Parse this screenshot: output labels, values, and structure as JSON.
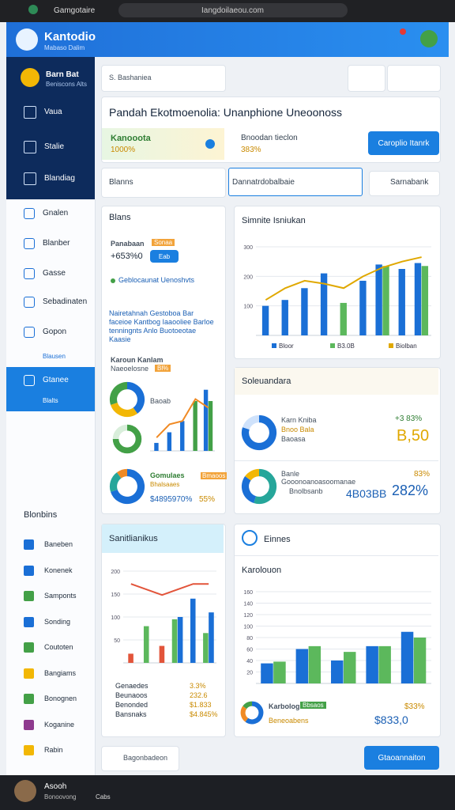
{
  "browser": {
    "tab": "Gamgotaire",
    "url": "Iangdoilaeou.com"
  },
  "header": {
    "brand": "Kantodio",
    "tagline": "Mabaso Dalim"
  },
  "sidebar": {
    "user_name": "Barn Bat",
    "user_role": "Beniscons Alts",
    "nav": [
      "Vaua",
      "Stalie",
      "Blandiag"
    ],
    "menu": [
      "Gnalen",
      "Blanber",
      "Gasse",
      "Sebadinaten",
      "Gopon",
      "Blausen",
      "Gtanee",
      "Blalts"
    ],
    "section": "Blonbins",
    "links": [
      "Baneben",
      "Konenek",
      "Samponts",
      "Sonding",
      "Coutoten",
      "Bangiams",
      "Bonognen",
      "Koganine",
      "Rabin"
    ]
  },
  "search": {
    "placeholder": "S. Bashaniea"
  },
  "title_panel": {
    "title": "Pandah Ekotmoenolia: Unanphione Uneoonoss",
    "kpi1_label": "Kanooota",
    "kpi1_value": "1000%",
    "kpi2_label": "Bnoodan tieclon",
    "kpi2_value": "383%",
    "button": "Caroplio Itanrk"
  },
  "filters": {
    "select": "Blanns",
    "input": "Dannatrdobalbaie",
    "button": "Sarnabank"
  },
  "left_card": {
    "title": "Blans",
    "label": "Panabaan",
    "badge": "Sonaa",
    "value": "+653%0",
    "button": "Eab",
    "legend": "Geblocaunat Uenoshvts",
    "note": "Nairetahnah Gestoboa Bar faceioe Kantbog Iaaooliee Barloe tenningnts Anlo Buotoeotae Kaasie",
    "chart_title": "Karoun Kanlam",
    "chart_sub": "Naeoelosne",
    "chart_badge": "Bl%",
    "donut_label": "Baoab",
    "footer_label": "Gomulaes",
    "footer_badge": "Bmaoos",
    "footer_sub": "Bhalsaaes",
    "footer_value": "$4895970%",
    "footer_pct": "55%"
  },
  "trend_card": {
    "title": "Simnite Isniukan"
  },
  "summary_card": {
    "title": "Soleuandara",
    "row1_name": "Karn Kniba",
    "row1_detail": "Bnoo Bala",
    "row1_detail2": "Baoasa",
    "row1_pct": "+3 83%",
    "row1_value": "B,50",
    "row2_name": "Banle",
    "row2_detail": "Gooonoanoasoomanae",
    "row2_detail2": "Bnolbsanb",
    "row2_pct": "83%",
    "row2_value": "4B03BB",
    "row2_value2": "282%"
  },
  "stats_card": {
    "title": "Sanitlianikus",
    "rows": [
      [
        "Genaedes",
        "3.3%"
      ],
      [
        "Beunaoos",
        "232.6"
      ],
      [
        "Benonded",
        "$1.833"
      ],
      [
        "Bansnaks",
        "$4.845%"
      ]
    ]
  },
  "compare_card": {
    "title": "Einnes",
    "subtitle": "Karolouon",
    "label": "Karbolog",
    "badge": "Bbsaos",
    "sub": "Beneoabens",
    "pct": "$33%",
    "value": "$833,0"
  },
  "footer": {
    "search_button": "Bagonbadeon",
    "action_button": "Gtaoannaiton",
    "user": "Asooh",
    "user_role": "Bonoovong",
    "nav": "Cabs"
  },
  "charts": {
    "trend": {
      "type": "bar",
      "ylim": [
        0,
        300
      ],
      "yticks": [
        100,
        200,
        300
      ],
      "series": [
        {
          "name": "Bloor",
          "color": "#1a6fd6",
          "values": [
            100,
            120,
            160,
            210,
            null,
            185,
            240,
            225,
            245
          ]
        },
        {
          "name": "B3.0B",
          "color": "#5cb85c",
          "values": [
            null,
            null,
            null,
            null,
            110,
            null,
            235,
            null,
            235
          ]
        },
        {
          "name": "Biolban",
          "color": "#e0a800",
          "mark": "line",
          "values": [
            120,
            160,
            185,
            175,
            160,
            200,
            230,
            250,
            265
          ]
        }
      ]
    },
    "mini": {
      "type": "bar",
      "ylim": [
        0,
        100
      ],
      "series": [
        {
          "color": "#1a6fd6",
          "values": [
            12,
            28,
            45,
            null,
            92
          ]
        },
        {
          "color": "#43a047",
          "values": [
            null,
            null,
            null,
            75,
            75
          ]
        },
        {
          "color": "#f08a24",
          "mark": "line",
          "values": [
            20,
            40,
            45,
            78,
            65
          ]
        }
      ]
    },
    "stats": {
      "type": "bar",
      "ylim": [
        0,
        200
      ],
      "yticks": [
        50,
        100,
        150,
        200
      ],
      "series": [
        {
          "color": "#e2543a",
          "values": [
            20,
            null,
            37,
            null,
            null,
            null
          ]
        },
        {
          "color": "#5cb85c",
          "values": [
            null,
            80,
            null,
            95,
            null,
            65
          ]
        },
        {
          "color": "#1a6fd6",
          "values": [
            null,
            null,
            null,
            100,
            140,
            110
          ]
        },
        {
          "color": "#e2543a",
          "mark": "line",
          "values": [
            172,
            160,
            148,
            160,
            172,
            172
          ]
        }
      ]
    },
    "compare": {
      "type": "bar",
      "ylim": [
        0,
        160
      ],
      "yticks": [
        20,
        40,
        60,
        80,
        100,
        120,
        140,
        160
      ],
      "series": [
        {
          "color": "#1a6fd6",
          "values": [
            35,
            60,
            40,
            65,
            90
          ]
        },
        {
          "color": "#5cb85c",
          "values": [
            38,
            65,
            55,
            65,
            80
          ]
        }
      ]
    },
    "mix_donut": {
      "type": "pie",
      "values": [
        40,
        30,
        30
      ],
      "colors": [
        "#1a6fd6",
        "#f2b705",
        "#43a047"
      ]
    },
    "green_donut": {
      "type": "pie",
      "values": [
        75,
        25
      ],
      "colors": [
        "#43a047",
        "#d9eedb"
      ]
    },
    "left_donut": {
      "type": "pie",
      "values": [
        70,
        20,
        10
      ],
      "colors": [
        "#1a6fd6",
        "#26a69a",
        "#f08a24"
      ]
    },
    "sum_donut1": {
      "type": "pie",
      "values": [
        80,
        20
      ],
      "colors": [
        "#1a6fd6",
        "#cfe2fb"
      ]
    },
    "sum_donut2": {
      "type": "pie",
      "values": [
        55,
        30,
        15
      ],
      "colors": [
        "#26a69a",
        "#1a6fd6",
        "#f2b705"
      ]
    },
    "cmp_donut": {
      "type": "pie",
      "values": [
        60,
        25,
        15
      ],
      "colors": [
        "#1a6fd6",
        "#f08a24",
        "#43a047"
      ]
    }
  }
}
